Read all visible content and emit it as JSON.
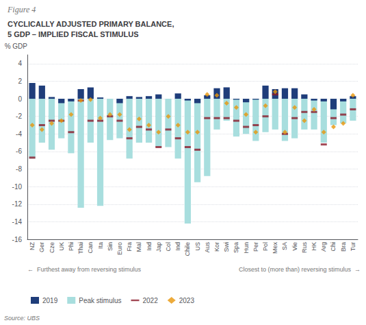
{
  "chart_data": {
    "type": "bar",
    "title": "Figure 4",
    "subtitle": "CYCLICALLY ADJUSTED PRIMARY BALANCE,\n5 GDP – IMPLIED FISCAL STIMULUS",
    "ylabel": "% GDP",
    "annotations": [
      "←  Furthest away from reversing stimulus",
      "Closest to (more than) reversing stimulus  →"
    ],
    "source": "Source: UBS",
    "categories": [
      "NZ",
      "Ger",
      "Cze",
      "UK",
      "Phi",
      "Thai",
      "Can",
      "Ita",
      "Sin",
      "Euro",
      "Fra",
      "Mal",
      "Ind",
      "Jap",
      "Col",
      "Ind",
      "Chile",
      "US",
      "Aus",
      "Kor",
      "Swi",
      "Spa",
      "Hun",
      "Per",
      "Pol",
      "Mex",
      "SA",
      "Vie",
      "Rus",
      "HK",
      "Arg",
      "Chi",
      "Bra",
      "Tur"
    ],
    "series": [
      {
        "name": "2019",
        "type": "bar",
        "color": "#1f3d7a",
        "values": [
          1.8,
          1.5,
          0.2,
          -0.5,
          -0.3,
          1.1,
          1.3,
          0.15,
          0.0,
          -0.5,
          0.3,
          0.2,
          0.3,
          0.5,
          0.0,
          0.6,
          -0.2,
          -0.5,
          0.4,
          1.2,
          1.3,
          -0.1,
          -0.4,
          -0.1,
          1.5,
          1.1,
          1.2,
          1.2,
          0.5,
          -0.2,
          -0.3,
          -1.2,
          -0.3,
          0.3
        ]
      },
      {
        "name": "Peak stimulus",
        "type": "bar",
        "color": "#a8dede",
        "values": [
          -6.8,
          -5.0,
          -5.8,
          -4.5,
          -6.2,
          -12.4,
          -5.0,
          -12.2,
          -4.7,
          -4.5,
          -6.8,
          -5.0,
          -5.0,
          -5.5,
          -5.5,
          -6.8,
          -14.2,
          -9.5,
          -8.8,
          -3.5,
          -2.5,
          -4.3,
          -4.0,
          -4.8,
          -3.8,
          -3.5,
          -4.8,
          -4.5,
          -3.5,
          -3.5,
          -5.0,
          -3.0,
          -2.8,
          -2.5
        ]
      },
      {
        "name": "2022",
        "type": "scatter",
        "marker": "hline",
        "color": "#8b1a2a",
        "values": [
          -6.7,
          -3.0,
          -2.5,
          -2.5,
          -3.8,
          -0.2,
          -2.5,
          -2.5,
          -2.0,
          -2.5,
          -4.5,
          -3.2,
          -3.5,
          -5.5,
          -3.5,
          -4.5,
          -5.5,
          -5.8,
          -2.2,
          -2.2,
          -2.2,
          -2.5,
          -3.2,
          -3.0,
          -2.0,
          0.5,
          -4.0,
          -2.2,
          -1.5,
          -1.5,
          -5.2,
          -2.2,
          -1.8,
          -1.2
        ]
      },
      {
        "name": "2023",
        "type": "scatter",
        "marker": "diamond",
        "color": "#e8960a",
        "values": [
          -3.0,
          -3.5,
          -2.8,
          -2.5,
          -1.8,
          -0.2,
          -0.1,
          -2.2,
          -1.8,
          -1.8,
          -3.5,
          -2.3,
          -3.0,
          -3.8,
          -2.0,
          -3.0,
          -3.8,
          -3.8,
          0.5,
          0.4,
          -0.5,
          -1.0,
          -1.8,
          -3.8,
          -0.8,
          0.8,
          -3.8,
          -1.0,
          -2.5,
          -1.2,
          -3.8,
          -3.2,
          -2.8,
          0.4
        ]
      }
    ],
    "ylim": [
      -16,
      5
    ],
    "yticks": [
      4,
      2,
      0,
      -2,
      -4,
      -6,
      -8,
      -10,
      -12,
      -14,
      -16
    ],
    "grid": true,
    "legend": "lower left"
  }
}
